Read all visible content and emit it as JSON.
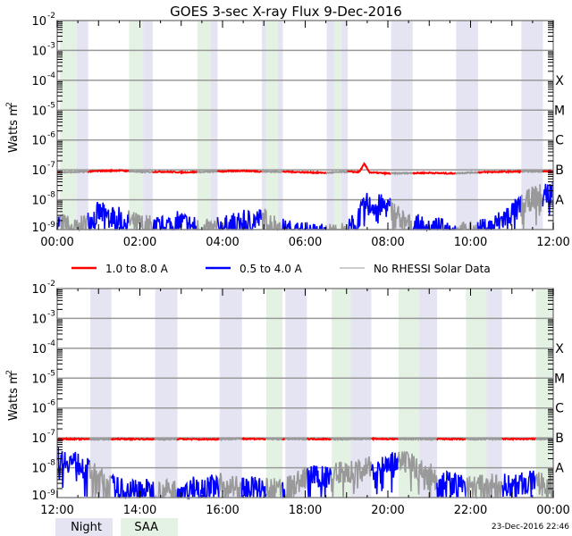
{
  "chart_data": {
    "type": "line",
    "title": "GOES 3-sec X-ray Flux    9-Dec-2016",
    "ylabel": "Watts m",
    "ylabel_exponent": "-2",
    "yscale": "log",
    "ylim": [
      1e-09,
      0.01
    ],
    "y_ticks": [
      {
        "base": "10",
        "exp": "-2",
        "value": -2
      },
      {
        "base": "10",
        "exp": "-3",
        "value": -3
      },
      {
        "base": "10",
        "exp": "-4",
        "value": -4
      },
      {
        "base": "10",
        "exp": "-5",
        "value": -5
      },
      {
        "base": "10",
        "exp": "-6",
        "value": -6
      },
      {
        "base": "10",
        "exp": "-7",
        "value": -7
      },
      {
        "base": "10",
        "exp": "-8",
        "value": -8
      },
      {
        "base": "10",
        "exp": "-9",
        "value": -9
      }
    ],
    "class_labels": [
      {
        "label": "X",
        "value": -4
      },
      {
        "label": "M",
        "value": -5
      },
      {
        "label": "C",
        "value": -6
      },
      {
        "label": "B",
        "value": -7
      },
      {
        "label": "A",
        "value": -8
      }
    ],
    "grid": true,
    "legend": [
      {
        "label": "1.0 to 8.0 A",
        "color": "#ff0000"
      },
      {
        "label": "0.5 to 4.0 A",
        "color": "#0000ff"
      },
      {
        "label": "No RHESSI Solar Data",
        "color": "#999999"
      }
    ],
    "band_legend": [
      {
        "label": "Night",
        "color": "#e4e4f2"
      },
      {
        "label": "SAA",
        "color": "#e4f2e4"
      }
    ],
    "panels": [
      {
        "xlim_hours": [
          0,
          12
        ],
        "x_ticks": [
          "00:00",
          "02:00",
          "04:00",
          "06:00",
          "08:00",
          "10:00",
          "12:00"
        ],
        "night": [
          [
            0.47,
            0.75
          ],
          [
            2.08,
            2.31
          ],
          [
            3.72,
            3.88
          ],
          [
            4.95,
            5.05
          ],
          [
            5.34,
            5.46
          ],
          [
            6.52,
            6.7
          ],
          [
            6.88,
            7.03
          ],
          [
            8.08,
            8.6
          ],
          [
            9.65,
            10.18
          ],
          [
            11.23,
            11.75
          ]
        ],
        "saa": [
          [
            0.07,
            0.47
          ],
          [
            1.74,
            2.08
          ],
          [
            3.39,
            3.72
          ],
          [
            5.05,
            5.34
          ],
          [
            6.7,
            6.88
          ]
        ],
        "series_log10_step_hours": 0.5,
        "long_1_8A": [
          -7.08,
          -7.07,
          -7.04,
          -7.02,
          -7.07,
          -7.06,
          -7.08,
          -7.07,
          -7.05,
          -7.03,
          -7.06,
          -7.06,
          -7.08,
          -7.1,
          -7.06,
          -7.08,
          -7.12,
          -7.11,
          -7.1,
          -7.12,
          -7.09,
          -7.07,
          -7.06,
          -7.05,
          -7.05
        ],
        "long_peak": {
          "hour": 7.43,
          "log10": -6.8
        },
        "short_05_4A": [
          -8.9,
          -9.2,
          -8.6,
          -8.8,
          -9.0,
          -9.1,
          -8.9,
          -9.2,
          -9.1,
          -8.9,
          -8.8,
          -9.2,
          -9.3,
          -9.3,
          -9.3,
          -8.3,
          -8.4,
          -9.0,
          -9.1,
          -9.2,
          -9.3,
          -9.1,
          -8.6,
          -8.1,
          -7.85
        ]
      },
      {
        "xlim_hours": [
          12,
          24
        ],
        "x_ticks": [
          "12:00",
          "14:00",
          "16:00",
          "18:00",
          "20:00",
          "22:00",
          "00:00"
        ],
        "night": [
          [
            12.8,
            13.31
          ],
          [
            14.37,
            14.91
          ],
          [
            15.93,
            16.47
          ],
          [
            17.52,
            18.04
          ],
          [
            19.1,
            19.6
          ],
          [
            20.75,
            21.19
          ],
          [
            22.39,
            22.76
          ]
        ],
        "saa": [
          [
            17.06,
            17.45
          ],
          [
            18.64,
            19.1
          ],
          [
            20.26,
            20.75
          ],
          [
            21.89,
            22.39
          ],
          [
            23.58,
            24.0
          ]
        ],
        "series_log10_step_hours": 0.5,
        "long_1_8A": [
          -7.04,
          -7.04,
          -7.05,
          -7.04,
          -7.04,
          -7.05,
          -7.04,
          -7.05,
          -7.04,
          -7.03,
          -7.04,
          -7.04,
          -7.04,
          -7.04,
          -7.05,
          -7.03,
          -7.04,
          -7.04,
          -7.04,
          -7.04,
          -7.05,
          -7.04,
          -7.04,
          -7.04,
          -7.04
        ],
        "short_05_4A": [
          -7.85,
          -8.0,
          -8.5,
          -8.9,
          -8.9,
          -8.95,
          -8.9,
          -8.8,
          -8.75,
          -8.8,
          -8.9,
          -8.9,
          -8.5,
          -8.4,
          -8.3,
          -8.2,
          -8.05,
          -8.0,
          -8.4,
          -8.7,
          -8.8,
          -8.75,
          -8.75,
          -8.65,
          -8.8
        ]
      }
    ]
  },
  "footer": {
    "timestamp": "23-Dec-2016 22:46"
  }
}
